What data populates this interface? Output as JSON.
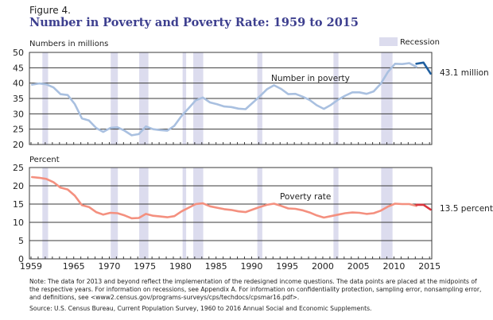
{
  "figure_label": "Figure 4.",
  "title": "Number in Poverty and Poverty Rate: 1959 to 2015",
  "legend": {
    "recession_label": "Recession",
    "recession_color": "#dcdcee"
  },
  "note": "Note: The data for 2013 and beyond reflect the implementation of the redesigned income questions. The data points are placed at the midpoints of the respective years. For information on recessions, see Appendix A. For information on confidentiality protection, sampling error, nonsampling error, and definitions, see <www2.census.gov/programs-surveys/cps/techdocs/cpsmar16.pdf>.",
  "source": "Source: U.S. Census Bureau, Current Population Survey, 1960 to 2016 Annual Social and Economic Supplements.",
  "chart_data": [
    {
      "type": "line",
      "ylabel": "Numbers in millions",
      "ylim": [
        20,
        50
      ],
      "yticks": [
        20,
        25,
        30,
        35,
        40,
        45,
        50
      ],
      "xlim": [
        1959,
        2015
      ],
      "xticks": [
        1959,
        1965,
        1970,
        1975,
        1980,
        1985,
        1990,
        1995,
        2000,
        2005,
        2010,
        2015
      ],
      "grid": true,
      "recessions": [
        [
          1960.3,
          1961.1
        ],
        [
          1969.9,
          1970.9
        ],
        [
          1973.9,
          1975.2
        ],
        [
          1980.0,
          1980.5
        ],
        [
          1981.5,
          1982.9
        ],
        [
          1990.5,
          1991.2
        ],
        [
          2001.2,
          2001.9
        ],
        [
          2007.9,
          2009.5
        ]
      ],
      "series_label": "Number in poverty",
      "end_label": "43.1 million",
      "series": [
        {
          "color": "#a9c0e0",
          "x": [
            1959,
            1960,
            1961,
            1962,
            1963,
            1964,
            1965,
            1966,
            1967,
            1968,
            1969,
            1970,
            1971,
            1972,
            1973,
            1974,
            1975,
            1976,
            1977,
            1978,
            1979,
            1980,
            1981,
            1982,
            1983,
            1984,
            1985,
            1986,
            1987,
            1988,
            1989,
            1990,
            1991,
            1992,
            1993,
            1994,
            1995,
            1996,
            1997,
            1998,
            1999,
            2000,
            2001,
            2002,
            2003,
            2004,
            2005,
            2006,
            2007,
            2008,
            2009,
            2010,
            2011,
            2012,
            2013
          ],
          "values": [
            39.5,
            39.9,
            39.6,
            38.6,
            36.4,
            36.1,
            33.2,
            28.5,
            27.8,
            25.4,
            24.1,
            25.4,
            25.6,
            24.5,
            23.0,
            23.4,
            25.9,
            25.0,
            24.7,
            24.5,
            26.1,
            29.3,
            31.8,
            34.4,
            35.3,
            33.7,
            33.1,
            32.4,
            32.2,
            31.7,
            31.5,
            33.6,
            35.7,
            38.0,
            39.3,
            38.1,
            36.4,
            36.5,
            35.6,
            34.5,
            32.8,
            31.6,
            32.9,
            34.6,
            35.9,
            37.0,
            37.0,
            36.5,
            37.3,
            39.8,
            43.6,
            46.3,
            46.2,
            46.5,
            45.3
          ]
        },
        {
          "color": "#1f5fa0",
          "x": [
            2013,
            2014,
            2015
          ],
          "values": [
            46.3,
            46.7,
            43.1
          ]
        }
      ]
    },
    {
      "type": "line",
      "ylabel": "Percent",
      "ylim": [
        0,
        25
      ],
      "yticks": [
        0,
        5,
        10,
        15,
        20,
        25
      ],
      "xlim": [
        1959,
        2015
      ],
      "xticks": [
        1959,
        1965,
        1970,
        1975,
        1980,
        1985,
        1990,
        1995,
        2000,
        2005,
        2010,
        2015
      ],
      "grid": true,
      "recessions": [
        [
          1960.3,
          1961.1
        ],
        [
          1969.9,
          1970.9
        ],
        [
          1973.9,
          1975.2
        ],
        [
          1980.0,
          1980.5
        ],
        [
          1981.5,
          1982.9
        ],
        [
          1990.5,
          1991.2
        ],
        [
          2001.2,
          2001.9
        ],
        [
          2007.9,
          2009.5
        ]
      ],
      "series_label": "Poverty rate",
      "end_label": "13.5 percent",
      "series": [
        {
          "color": "#f4907f",
          "x": [
            1959,
            1960,
            1961,
            1962,
            1963,
            1964,
            1965,
            1966,
            1967,
            1968,
            1969,
            1970,
            1971,
            1972,
            1973,
            1974,
            1975,
            1976,
            1977,
            1978,
            1979,
            1980,
            1981,
            1982,
            1983,
            1984,
            1985,
            1986,
            1987,
            1988,
            1989,
            1990,
            1991,
            1992,
            1993,
            1994,
            1995,
            1996,
            1997,
            1998,
            1999,
            2000,
            2001,
            2002,
            2003,
            2004,
            2005,
            2006,
            2007,
            2008,
            2009,
            2010,
            2011,
            2012,
            2013
          ],
          "values": [
            22.4,
            22.2,
            21.9,
            21.0,
            19.5,
            19.0,
            17.3,
            14.7,
            14.2,
            12.8,
            12.1,
            12.6,
            12.5,
            11.9,
            11.1,
            11.2,
            12.3,
            11.8,
            11.6,
            11.4,
            11.7,
            13.0,
            14.0,
            15.0,
            15.2,
            14.4,
            14.0,
            13.6,
            13.4,
            13.0,
            12.8,
            13.5,
            14.2,
            14.8,
            15.1,
            14.5,
            13.8,
            13.7,
            13.3,
            12.7,
            11.9,
            11.3,
            11.7,
            12.1,
            12.5,
            12.7,
            12.6,
            12.3,
            12.5,
            13.2,
            14.3,
            15.1,
            15.0,
            15.0,
            14.5
          ]
        },
        {
          "color": "#d9363e",
          "x": [
            2013,
            2014,
            2015
          ],
          "values": [
            14.8,
            14.8,
            13.5
          ]
        }
      ]
    }
  ]
}
